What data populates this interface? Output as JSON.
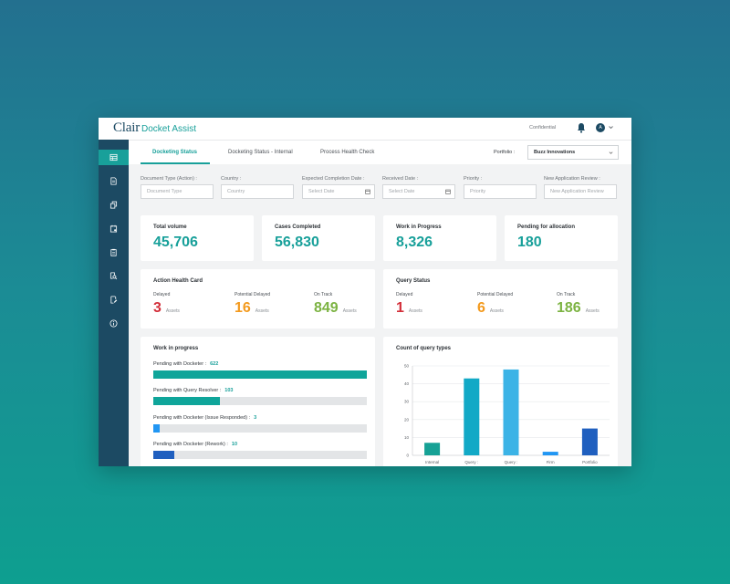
{
  "app": {
    "logo_main": "Clair",
    "logo_sub": "Docket Assist",
    "confidential": "Confidential",
    "avatar_initial": "A"
  },
  "sidebar": {
    "items": [
      {
        "icon": "dashboard-icon",
        "active": true
      },
      {
        "icon": "document-icon",
        "active": false
      },
      {
        "icon": "copy-icon",
        "active": false
      },
      {
        "icon": "calendar-star-icon",
        "active": false
      },
      {
        "icon": "clipboard-icon",
        "active": false
      },
      {
        "icon": "document-search-icon",
        "active": false
      },
      {
        "icon": "document-edit-icon",
        "active": false
      },
      {
        "icon": "info-icon",
        "active": false
      }
    ]
  },
  "tabs": [
    {
      "label": "Docketing Status"
    },
    {
      "label": "Docketing Status - Internal"
    },
    {
      "label": "Process Health Check"
    }
  ],
  "portfolio": {
    "label": "Portfolio :",
    "value": "Buzz Innovations"
  },
  "filters": [
    {
      "label": "Document Type (Action) :",
      "placeholder": "Document Type"
    },
    {
      "label": "Country :",
      "placeholder": "Country"
    },
    {
      "label": "Expected Completion Date :",
      "placeholder": "Select Date"
    },
    {
      "label": "Received Date :",
      "placeholder": "Select Date"
    },
    {
      "label": "Priority :",
      "placeholder": "Priority"
    },
    {
      "label": "New Application Review :",
      "placeholder": "New Application Review"
    }
  ],
  "kpis": [
    {
      "label": "Total volume",
      "value": "45,706"
    },
    {
      "label": "Cases Completed",
      "value": "56,830"
    },
    {
      "label": "Work in Progress",
      "value": "8,326"
    },
    {
      "label": "Pending for allocation",
      "value": "180"
    }
  ],
  "action_health": {
    "title": "Action Health Card",
    "stats": [
      {
        "label": "Delayed",
        "value": "3",
        "unit": "Assets",
        "color": "#d32f3a"
      },
      {
        "label": "Potential Delayed",
        "value": "16",
        "unit": "Assets",
        "color": "#f39a1e"
      },
      {
        "label": "On Track",
        "value": "849",
        "unit": "Assets",
        "color": "#7cb342"
      }
    ]
  },
  "query_status": {
    "title": "Query Status",
    "stats": [
      {
        "label": "Delayed",
        "value": "1",
        "unit": "Assets",
        "color": "#d32f3a"
      },
      {
        "label": "Potential Delayed",
        "value": "6",
        "unit": "Assets",
        "color": "#f39a1e"
      },
      {
        "label": "On Track",
        "value": "186",
        "unit": "Assets",
        "color": "#7cb342"
      }
    ]
  },
  "work_in_progress": {
    "title": "Work in progress",
    "items": [
      {
        "label": "Pending with Docketer :",
        "count": "622",
        "fraction": 1.0,
        "color": "#0fa59a"
      },
      {
        "label": "Pending with Query Resolver :",
        "count": "103",
        "fraction": 0.31,
        "color": "#0fa59a"
      },
      {
        "label": "Pending with Docketer (Issue Responded) :",
        "count": "3",
        "fraction": 0.03,
        "color": "#2196f3"
      },
      {
        "label": "Pending with Docketer (Rework) :",
        "count": "10",
        "fraction": 0.1,
        "color": "#1f5fbf"
      }
    ]
  },
  "chart_data": {
    "type": "bar",
    "title": "Count of query types",
    "categories": [
      "Internal",
      "Query :",
      "Query :",
      "Firm",
      "Portfolio"
    ],
    "values": [
      7,
      43,
      48,
      2,
      15
    ],
    "colors": [
      "#16a195",
      "#12a9c6",
      "#3bb3e6",
      "#2196f3",
      "#1f5fbf"
    ],
    "yticks": [
      0,
      10,
      20,
      30,
      40,
      50
    ],
    "ylim": [
      0,
      50
    ],
    "grid": true
  }
}
